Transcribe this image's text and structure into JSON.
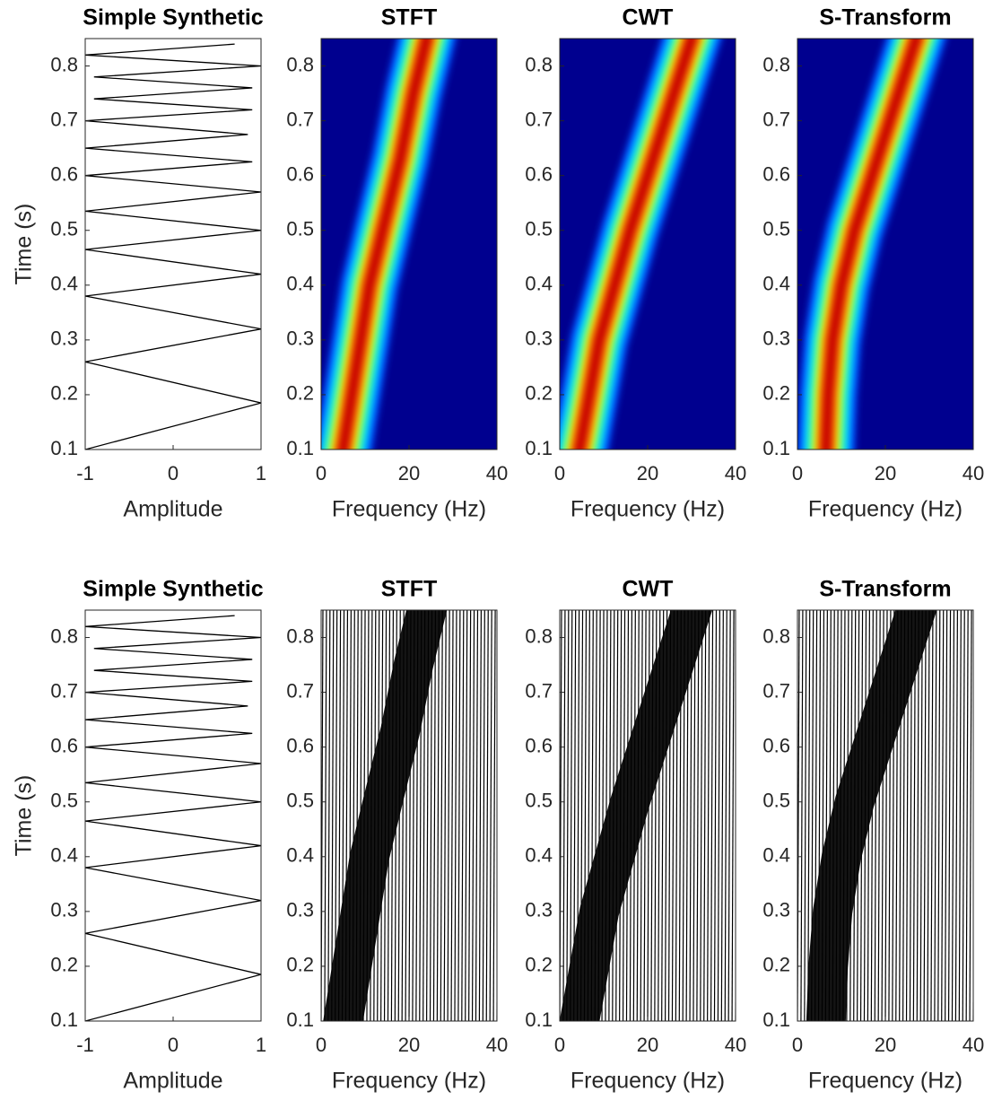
{
  "chart_data": [
    {
      "type": "signal",
      "title": "Simple Synthetic",
      "xlabel": "Amplitude",
      "ylabel": "Time (s)",
      "time": [
        0.1,
        0.185,
        0.26,
        0.32,
        0.38,
        0.42,
        0.465,
        0.5,
        0.535,
        0.57,
        0.6,
        0.625,
        0.65,
        0.675,
        0.7,
        0.72,
        0.74,
        0.76,
        0.78,
        0.8,
        0.82,
        0.84
      ],
      "values": [
        -1,
        1,
        -1,
        1,
        -1,
        1,
        -1,
        1,
        -1,
        1,
        -1,
        0.9,
        -1,
        0.85,
        -1,
        0.9,
        -0.9,
        0.9,
        -0.9,
        1,
        -1,
        0.7
      ],
      "xlim": [
        -1,
        1
      ],
      "xticks": [
        -1,
        0,
        1
      ],
      "ylim": [
        0.1,
        0.85
      ],
      "yticks": [
        0.1,
        0.2,
        0.3,
        0.4,
        0.5,
        0.6,
        0.7,
        0.8
      ]
    },
    {
      "type": "heatmap",
      "title": "STFT",
      "xlabel": "Frequency (Hz)",
      "time": [
        0.1,
        0.25,
        0.4,
        0.5,
        0.63,
        0.75,
        0.85
      ],
      "frequency": [
        5,
        8,
        11,
        14,
        18,
        21,
        24
      ],
      "xlim": [
        0,
        40
      ],
      "xticks": [
        0,
        20,
        40
      ],
      "ylim": [
        0.1,
        0.85
      ],
      "yticks": [
        0.1,
        0.2,
        0.3,
        0.4,
        0.5,
        0.6,
        0.7,
        0.8
      ]
    },
    {
      "type": "heatmap",
      "title": "CWT",
      "xlabel": "Frequency (Hz)",
      "time": [
        0.1,
        0.3,
        0.5,
        0.7,
        0.85
      ],
      "frequency": [
        4.5,
        9,
        16,
        24,
        30
      ],
      "xlim": [
        0,
        40
      ],
      "xticks": [
        0,
        20,
        40
      ],
      "ylim": [
        0.1,
        0.85
      ],
      "yticks": [
        0.1,
        0.2,
        0.3,
        0.4,
        0.5,
        0.6,
        0.7,
        0.8
      ]
    },
    {
      "type": "heatmap",
      "title": "S-Transform",
      "xlabel": "Frequency (Hz)",
      "time": [
        0.1,
        0.2,
        0.3,
        0.4,
        0.5,
        0.6,
        0.7,
        0.85
      ],
      "frequency": [
        6.5,
        7,
        8,
        10,
        13,
        17,
        21,
        27
      ],
      "xlim": [
        0,
        40
      ],
      "xticks": [
        0,
        20,
        40
      ],
      "ylim": [
        0.1,
        0.85
      ],
      "yticks": [
        0.1,
        0.2,
        0.3,
        0.4,
        0.5,
        0.6,
        0.7,
        0.8
      ]
    },
    {
      "type": "signal",
      "title": "Simple Synthetic",
      "xlabel": "Amplitude",
      "ylabel": "Time (s)",
      "time": [
        0.1,
        0.185,
        0.26,
        0.32,
        0.38,
        0.42,
        0.465,
        0.5,
        0.535,
        0.57,
        0.6,
        0.625,
        0.65,
        0.675,
        0.7,
        0.72,
        0.74,
        0.76,
        0.78,
        0.8,
        0.82,
        0.84
      ],
      "values": [
        -1,
        1,
        -1,
        1,
        -1,
        1,
        -1,
        1,
        -1,
        1,
        -1,
        0.9,
        -1,
        0.85,
        -1,
        0.9,
        -0.9,
        0.9,
        -0.9,
        1,
        -1,
        0.7
      ],
      "xlim": [
        -1,
        1
      ],
      "xticks": [
        -1,
        0,
        1
      ],
      "ylim": [
        0.1,
        0.85
      ],
      "yticks": [
        0.1,
        0.2,
        0.3,
        0.4,
        0.5,
        0.6,
        0.7,
        0.8
      ]
    },
    {
      "type": "wiggle",
      "title": "STFT",
      "xlabel": "Frequency (Hz)",
      "time": [
        0.1,
        0.25,
        0.4,
        0.5,
        0.63,
        0.75,
        0.85
      ],
      "frequency": [
        5,
        8,
        11,
        14,
        18,
        21,
        24
      ],
      "xlim": [
        0,
        40
      ],
      "xticks": [
        0,
        20,
        40
      ],
      "ylim": [
        0.1,
        0.85
      ],
      "yticks": [
        0.1,
        0.2,
        0.3,
        0.4,
        0.5,
        0.6,
        0.7,
        0.8
      ]
    },
    {
      "type": "wiggle",
      "title": "CWT",
      "xlabel": "Frequency (Hz)",
      "time": [
        0.1,
        0.3,
        0.5,
        0.7,
        0.85
      ],
      "frequency": [
        4.5,
        9,
        16,
        24,
        30
      ],
      "xlim": [
        0,
        40
      ],
      "xticks": [
        0,
        20,
        40
      ],
      "ylim": [
        0.1,
        0.85
      ],
      "yticks": [
        0.1,
        0.2,
        0.3,
        0.4,
        0.5,
        0.6,
        0.7,
        0.8
      ]
    },
    {
      "type": "wiggle",
      "title": "S-Transform",
      "xlabel": "Frequency (Hz)",
      "time": [
        0.1,
        0.2,
        0.3,
        0.4,
        0.5,
        0.6,
        0.7,
        0.85
      ],
      "frequency": [
        6.5,
        7,
        8,
        10,
        13,
        17,
        21,
        27
      ],
      "xlim": [
        0,
        40
      ],
      "xticks": [
        0,
        20,
        40
      ],
      "ylim": [
        0.1,
        0.85
      ],
      "yticks": [
        0.1,
        0.2,
        0.3,
        0.4,
        0.5,
        0.6,
        0.7,
        0.8
      ]
    }
  ]
}
